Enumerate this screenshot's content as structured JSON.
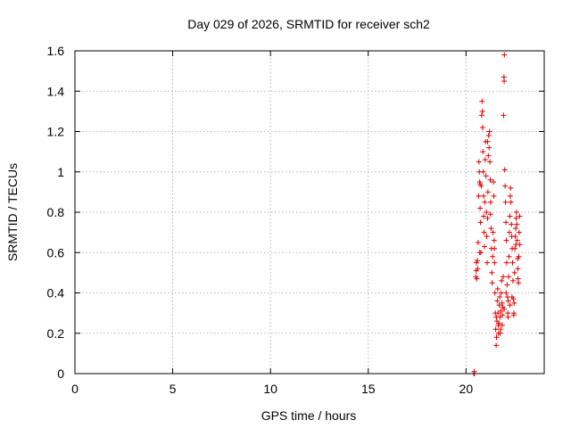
{
  "chart_data": {
    "type": "scatter",
    "title": "Day 029 of 2026, SRMTID for receiver sch2",
    "xlabel": "GPS time / hours",
    "ylabel": "SRMTID / TECUs",
    "xlim": [
      0,
      24
    ],
    "ylim": [
      0,
      1.6
    ],
    "x_ticks": [
      0,
      5,
      10,
      15,
      20
    ],
    "x_tick_labels": [
      "0",
      "5",
      "10",
      "15",
      "20"
    ],
    "y_ticks": [
      0,
      0.2,
      0.4,
      0.6,
      0.8,
      1.0,
      1.2,
      1.4,
      1.6
    ],
    "y_tick_labels": [
      "0",
      "0.2",
      "0.4",
      "0.6",
      "0.8",
      "1",
      "1.2",
      "1.4",
      "1.6"
    ],
    "grid": true,
    "marker": "plus",
    "series": [
      {
        "name": "SRMTID",
        "color": "#e00000",
        "points": [
          [
            20.4,
            0.0
          ],
          [
            20.42,
            0.01
          ],
          [
            20.43,
            0.0
          ],
          [
            20.5,
            0.48
          ],
          [
            20.52,
            0.51
          ],
          [
            20.53,
            0.55
          ],
          [
            20.55,
            0.47
          ],
          [
            20.58,
            0.56
          ],
          [
            20.6,
            0.52
          ],
          [
            20.62,
            0.65
          ],
          [
            20.64,
            0.88
          ],
          [
            20.66,
            1.05
          ],
          [
            20.68,
            1.0
          ],
          [
            20.7,
            0.95
          ],
          [
            20.72,
            0.82
          ],
          [
            20.74,
            0.75
          ],
          [
            20.76,
            0.6
          ],
          [
            20.78,
            0.93
          ],
          [
            20.8,
            1.28
          ],
          [
            20.82,
            1.35
          ],
          [
            20.84,
            1.3
          ],
          [
            20.86,
            1.1
          ],
          [
            20.88,
            1.0
          ],
          [
            20.9,
            0.88
          ],
          [
            20.92,
            0.7
          ],
          [
            20.94,
            0.63
          ],
          [
            20.96,
            0.85
          ],
          [
            20.98,
            1.06
          ],
          [
            21.0,
            1.15
          ],
          [
            21.02,
            0.98
          ],
          [
            21.04,
            0.8
          ],
          [
            21.06,
            0.68
          ],
          [
            21.08,
            0.55
          ],
          [
            21.1,
            0.77
          ],
          [
            21.12,
            0.9
          ],
          [
            21.14,
            1.08
          ],
          [
            21.16,
            1.18
          ],
          [
            21.18,
            1.12
          ],
          [
            21.2,
            1.2
          ],
          [
            21.22,
            1.05
          ],
          [
            21.24,
            0.96
          ],
          [
            21.26,
            0.85
          ],
          [
            21.28,
            0.72
          ],
          [
            21.3,
            0.62
          ],
          [
            21.32,
            0.5
          ],
          [
            21.34,
            0.45
          ],
          [
            21.36,
            0.58
          ],
          [
            21.38,
            0.7
          ],
          [
            21.4,
            0.95
          ],
          [
            21.42,
            0.88
          ],
          [
            21.44,
            0.66
          ],
          [
            21.46,
            0.55
          ],
          [
            21.48,
            0.4
          ],
          [
            21.5,
            0.3
          ],
          [
            21.52,
            0.22
          ],
          [
            21.54,
            0.14
          ],
          [
            21.56,
            0.18
          ],
          [
            21.58,
            0.26
          ],
          [
            21.6,
            0.36
          ],
          [
            21.62,
            0.42
          ],
          [
            21.64,
            0.3
          ],
          [
            21.66,
            0.2
          ],
          [
            21.68,
            0.25
          ],
          [
            21.7,
            0.34
          ],
          [
            21.72,
            0.38
          ],
          [
            21.74,
            0.28
          ],
          [
            21.76,
            0.22
          ],
          [
            21.78,
            0.31
          ],
          [
            21.8,
            0.4
          ],
          [
            21.82,
            0.46
          ],
          [
            21.84,
            0.35
          ],
          [
            21.86,
            0.29
          ],
          [
            21.88,
            0.33
          ],
          [
            21.9,
            0.48
          ],
          [
            21.92,
            1.28
          ],
          [
            21.94,
            1.47
          ],
          [
            21.95,
            1.45
          ],
          [
            21.96,
            1.58
          ],
          [
            21.98,
            1.01
          ],
          [
            22.0,
            0.93
          ],
          [
            22.02,
            0.85
          ],
          [
            22.04,
            0.75
          ],
          [
            22.06,
            0.66
          ],
          [
            22.08,
            0.55
          ],
          [
            22.1,
            0.44
          ],
          [
            22.12,
            0.38
          ],
          [
            22.14,
            0.3
          ],
          [
            22.16,
            0.36
          ],
          [
            22.18,
            0.48
          ],
          [
            22.2,
            0.58
          ],
          [
            22.22,
            0.7
          ],
          [
            22.24,
            0.78
          ],
          [
            22.26,
            0.88
          ],
          [
            22.28,
            0.92
          ],
          [
            22.3,
            0.85
          ],
          [
            22.32,
            0.74
          ],
          [
            22.34,
            0.68
          ],
          [
            22.36,
            0.62
          ],
          [
            22.38,
            0.55
          ],
          [
            22.4,
            0.46
          ],
          [
            22.42,
            0.37
          ],
          [
            22.44,
            0.29
          ],
          [
            22.46,
            0.35
          ],
          [
            22.48,
            0.5
          ],
          [
            22.5,
            0.62
          ],
          [
            22.52,
            0.68
          ],
          [
            22.54,
            0.72
          ],
          [
            22.56,
            0.77
          ],
          [
            22.58,
            0.8
          ],
          [
            22.6,
            0.74
          ],
          [
            22.62,
            0.66
          ],
          [
            22.64,
            0.57
          ],
          [
            22.66,
            0.47
          ],
          [
            22.68,
            0.45
          ],
          [
            22.7,
            0.58
          ],
          [
            22.72,
            0.7
          ],
          [
            22.74,
            0.78
          ],
          [
            20.7,
            0.6
          ],
          [
            20.72,
            0.94
          ],
          [
            20.85,
            1.22
          ],
          [
            20.9,
            0.78
          ],
          [
            21.1,
            1.15
          ],
          [
            21.25,
            0.79
          ],
          [
            21.45,
            0.62
          ],
          [
            21.55,
            0.28
          ],
          [
            21.65,
            0.24
          ],
          [
            21.75,
            0.2
          ],
          [
            21.85,
            0.24
          ],
          [
            21.95,
            0.32
          ],
          [
            22.05,
            0.4
          ],
          [
            22.15,
            0.28
          ],
          [
            22.25,
            0.34
          ],
          [
            22.35,
            0.38
          ],
          [
            22.45,
            0.3
          ],
          [
            22.55,
            0.64
          ],
          [
            22.65,
            0.52
          ],
          [
            22.75,
            0.64
          ]
        ]
      }
    ]
  }
}
